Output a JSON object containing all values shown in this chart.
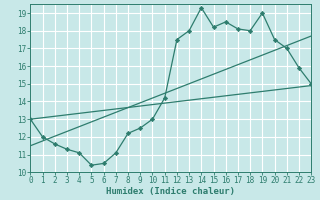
{
  "background_color": "#c8e8e8",
  "grid_color": "#ffffff",
  "line_color": "#2e7d6e",
  "xlabel": "Humidex (Indice chaleur)",
  "xlim": [
    0,
    23
  ],
  "ylim": [
    10,
    19.5
  ],
  "yticks": [
    10,
    11,
    12,
    13,
    14,
    15,
    16,
    17,
    18,
    19
  ],
  "xticks": [
    0,
    1,
    2,
    3,
    4,
    5,
    6,
    7,
    8,
    9,
    10,
    11,
    12,
    13,
    14,
    15,
    16,
    17,
    18,
    19,
    20,
    21,
    22,
    23
  ],
  "line1_x": [
    0,
    1,
    2,
    3,
    4,
    5,
    6,
    7,
    8,
    9,
    10,
    11,
    12,
    13,
    14,
    15,
    16,
    17,
    18,
    19,
    20,
    21,
    22,
    23
  ],
  "line1_y": [
    13.0,
    12.0,
    11.6,
    11.3,
    11.1,
    10.4,
    10.5,
    11.1,
    12.2,
    12.5,
    13.0,
    14.2,
    17.5,
    18.0,
    19.3,
    18.2,
    18.5,
    18.1,
    18.0,
    19.0,
    17.5,
    17.0,
    15.9,
    15.0
  ],
  "line2_x": [
    0,
    23
  ],
  "line2_y": [
    11.5,
    17.7
  ],
  "line3_x": [
    0,
    23
  ],
  "line3_y": [
    13.0,
    14.9
  ]
}
